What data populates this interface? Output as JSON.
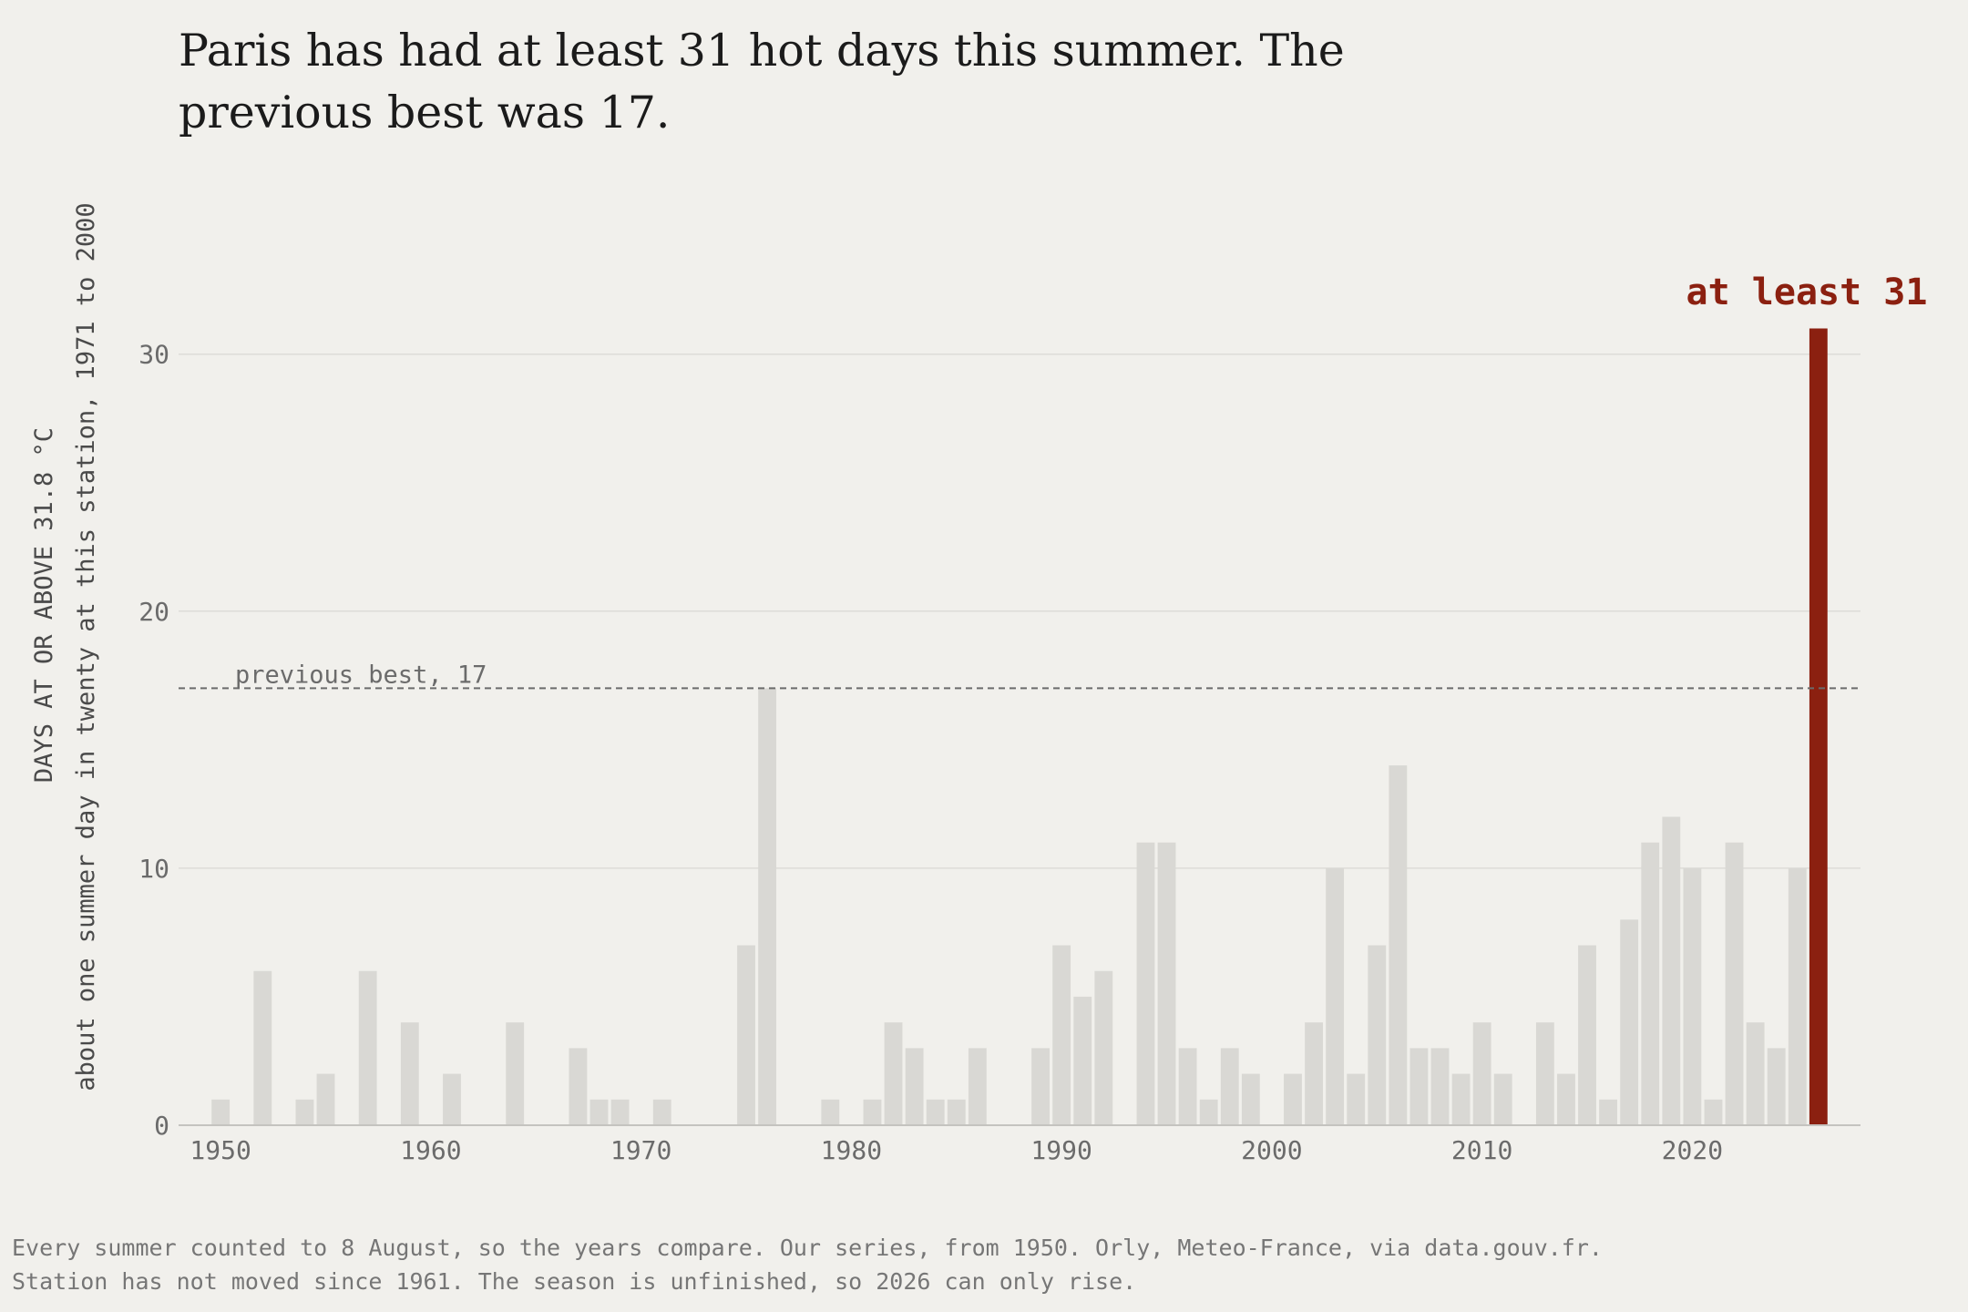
{
  "title_lines": [
    "Paris has had at least 31 hot days this summer. The",
    "previous best was 17."
  ],
  "footnote_lines": [
    "Every summer counted to 8 August, so the years compare. Our series, from 1950. Orly, Meteo-France, via data.gouv.fr.",
    "Station has not moved since 1961. The season is unfinished, so 2026 can only rise."
  ],
  "colors": {
    "background": "#f1f0ec",
    "bar": "#d9d8d4",
    "highlight": "#8b2010",
    "grid": "#dddcd8",
    "reference_line": "#6b6b6b",
    "baseline": "#c4c3bf"
  },
  "chart_data": {
    "type": "bar",
    "ylabel": "DAYS AT OR ABOVE 31.8 °C",
    "ylabel_sub": "about one summer day in twenty at this station, 1971 to 2000",
    "xlabel": "",
    "ylim": [
      0,
      31
    ],
    "yticks": [
      0,
      10,
      20,
      30
    ],
    "xticks": [
      1950,
      1960,
      1970,
      1980,
      1990,
      2000,
      2010,
      2020
    ],
    "grid": true,
    "reference_line": {
      "value": 17,
      "label": "previous best, 17"
    },
    "highlight": {
      "year": 2026,
      "label": "at least 31"
    },
    "years": [
      1950,
      1951,
      1952,
      1953,
      1954,
      1955,
      1956,
      1957,
      1958,
      1959,
      1960,
      1961,
      1962,
      1963,
      1964,
      1965,
      1966,
      1967,
      1968,
      1969,
      1970,
      1971,
      1972,
      1973,
      1974,
      1975,
      1976,
      1977,
      1978,
      1979,
      1980,
      1981,
      1982,
      1983,
      1984,
      1985,
      1986,
      1987,
      1988,
      1989,
      1990,
      1991,
      1992,
      1993,
      1994,
      1995,
      1996,
      1997,
      1998,
      1999,
      2000,
      2001,
      2002,
      2003,
      2004,
      2005,
      2006,
      2007,
      2008,
      2009,
      2010,
      2011,
      2012,
      2013,
      2014,
      2015,
      2016,
      2017,
      2018,
      2019,
      2020,
      2021,
      2022,
      2023,
      2024,
      2025,
      2026
    ],
    "values": [
      1,
      0,
      6,
      0,
      1,
      2,
      0,
      6,
      0,
      4,
      0,
      2,
      0,
      0,
      4,
      0,
      0,
      3,
      1,
      1,
      0,
      1,
      0,
      0,
      0,
      7,
      17,
      0,
      0,
      1,
      0,
      1,
      4,
      3,
      1,
      1,
      3,
      0,
      0,
      3,
      7,
      5,
      6,
      0,
      11,
      11,
      3,
      1,
      3,
      2,
      0,
      2,
      4,
      10,
      2,
      7,
      14,
      3,
      3,
      2,
      4,
      2,
      0,
      4,
      2,
      7,
      1,
      8,
      11,
      12,
      10,
      1,
      11,
      4,
      3,
      10,
      31
    ]
  }
}
